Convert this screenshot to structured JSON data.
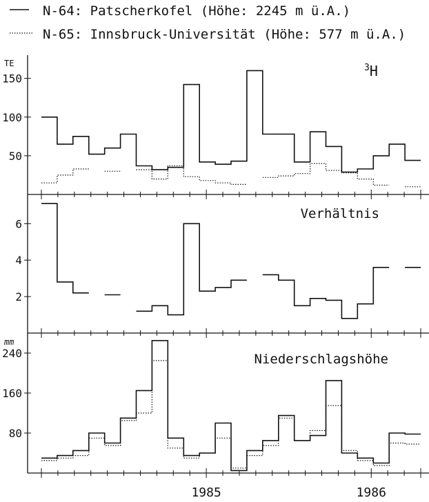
{
  "legend": [
    {
      "label": "N-64: Patscherkofel (Höhe: 2245 m ü.A.)",
      "style": "solid"
    },
    {
      "label": "N-65: Innsbruck-Universität (Höhe: 577 m ü.A.)",
      "style": "dotted"
    }
  ],
  "colors": {
    "ink": "#111111",
    "background": "#ffffff"
  },
  "chart_data": [
    {
      "type": "line",
      "step": true,
      "title": "3H",
      "ylabel": "TE",
      "ylim": [
        0,
        180
      ],
      "yticks": [
        50,
        100,
        150
      ],
      "series": [
        {
          "name": "N-64: Patscherkofel",
          "style": "solid",
          "values": [
            100,
            65,
            75,
            52,
            60,
            78,
            37,
            32,
            35,
            142,
            42,
            39,
            43,
            160,
            78,
            78,
            42,
            81,
            62,
            29,
            33,
            50,
            65,
            44,
            44
          ]
        },
        {
          "name": "N-65: Innsbruck-Universität",
          "style": "dotted",
          "values": [
            15,
            25,
            33,
            null,
            30,
            null,
            32,
            20,
            37,
            23,
            18,
            15,
            13,
            null,
            22,
            24,
            27,
            40,
            31,
            28,
            20,
            12,
            null,
            10,
            null
          ]
        }
      ]
    },
    {
      "type": "line",
      "step": true,
      "title": "Verhältnis",
      "ylim": [
        0,
        7.6
      ],
      "yticks": [
        2,
        4,
        6
      ],
      "series": [
        {
          "name": "Verhältnis",
          "style": "solid",
          "values": [
            7.1,
            2.8,
            2.2,
            null,
            2.1,
            null,
            1.2,
            1.5,
            1.0,
            6.0,
            2.3,
            2.5,
            2.9,
            null,
            3.2,
            2.9,
            1.5,
            1.9,
            1.8,
            0.8,
            1.6,
            3.6,
            null,
            3.6,
            null
          ]
        }
      ]
    },
    {
      "type": "line",
      "step": true,
      "title": "Niederschlagshöhe",
      "ylabel": "mm",
      "ylim": [
        0,
        280
      ],
      "yticks": [
        80,
        160,
        240
      ],
      "x_tick_labels": [
        "1985",
        "1986"
      ],
      "series": [
        {
          "name": "Patscherkofel",
          "style": "solid",
          "values": [
            30,
            35,
            45,
            80,
            60,
            110,
            165,
            265,
            70,
            35,
            40,
            100,
            5,
            45,
            65,
            115,
            65,
            75,
            185,
            40,
            30,
            20,
            80,
            78,
            78
          ]
        },
        {
          "name": "Innsbruck-Universität",
          "style": "dotted",
          "values": [
            25,
            30,
            35,
            70,
            55,
            105,
            120,
            225,
            50,
            30,
            40,
            70,
            10,
            35,
            55,
            110,
            65,
            85,
            135,
            45,
            25,
            15,
            60,
            58,
            58
          ]
        }
      ]
    }
  ]
}
